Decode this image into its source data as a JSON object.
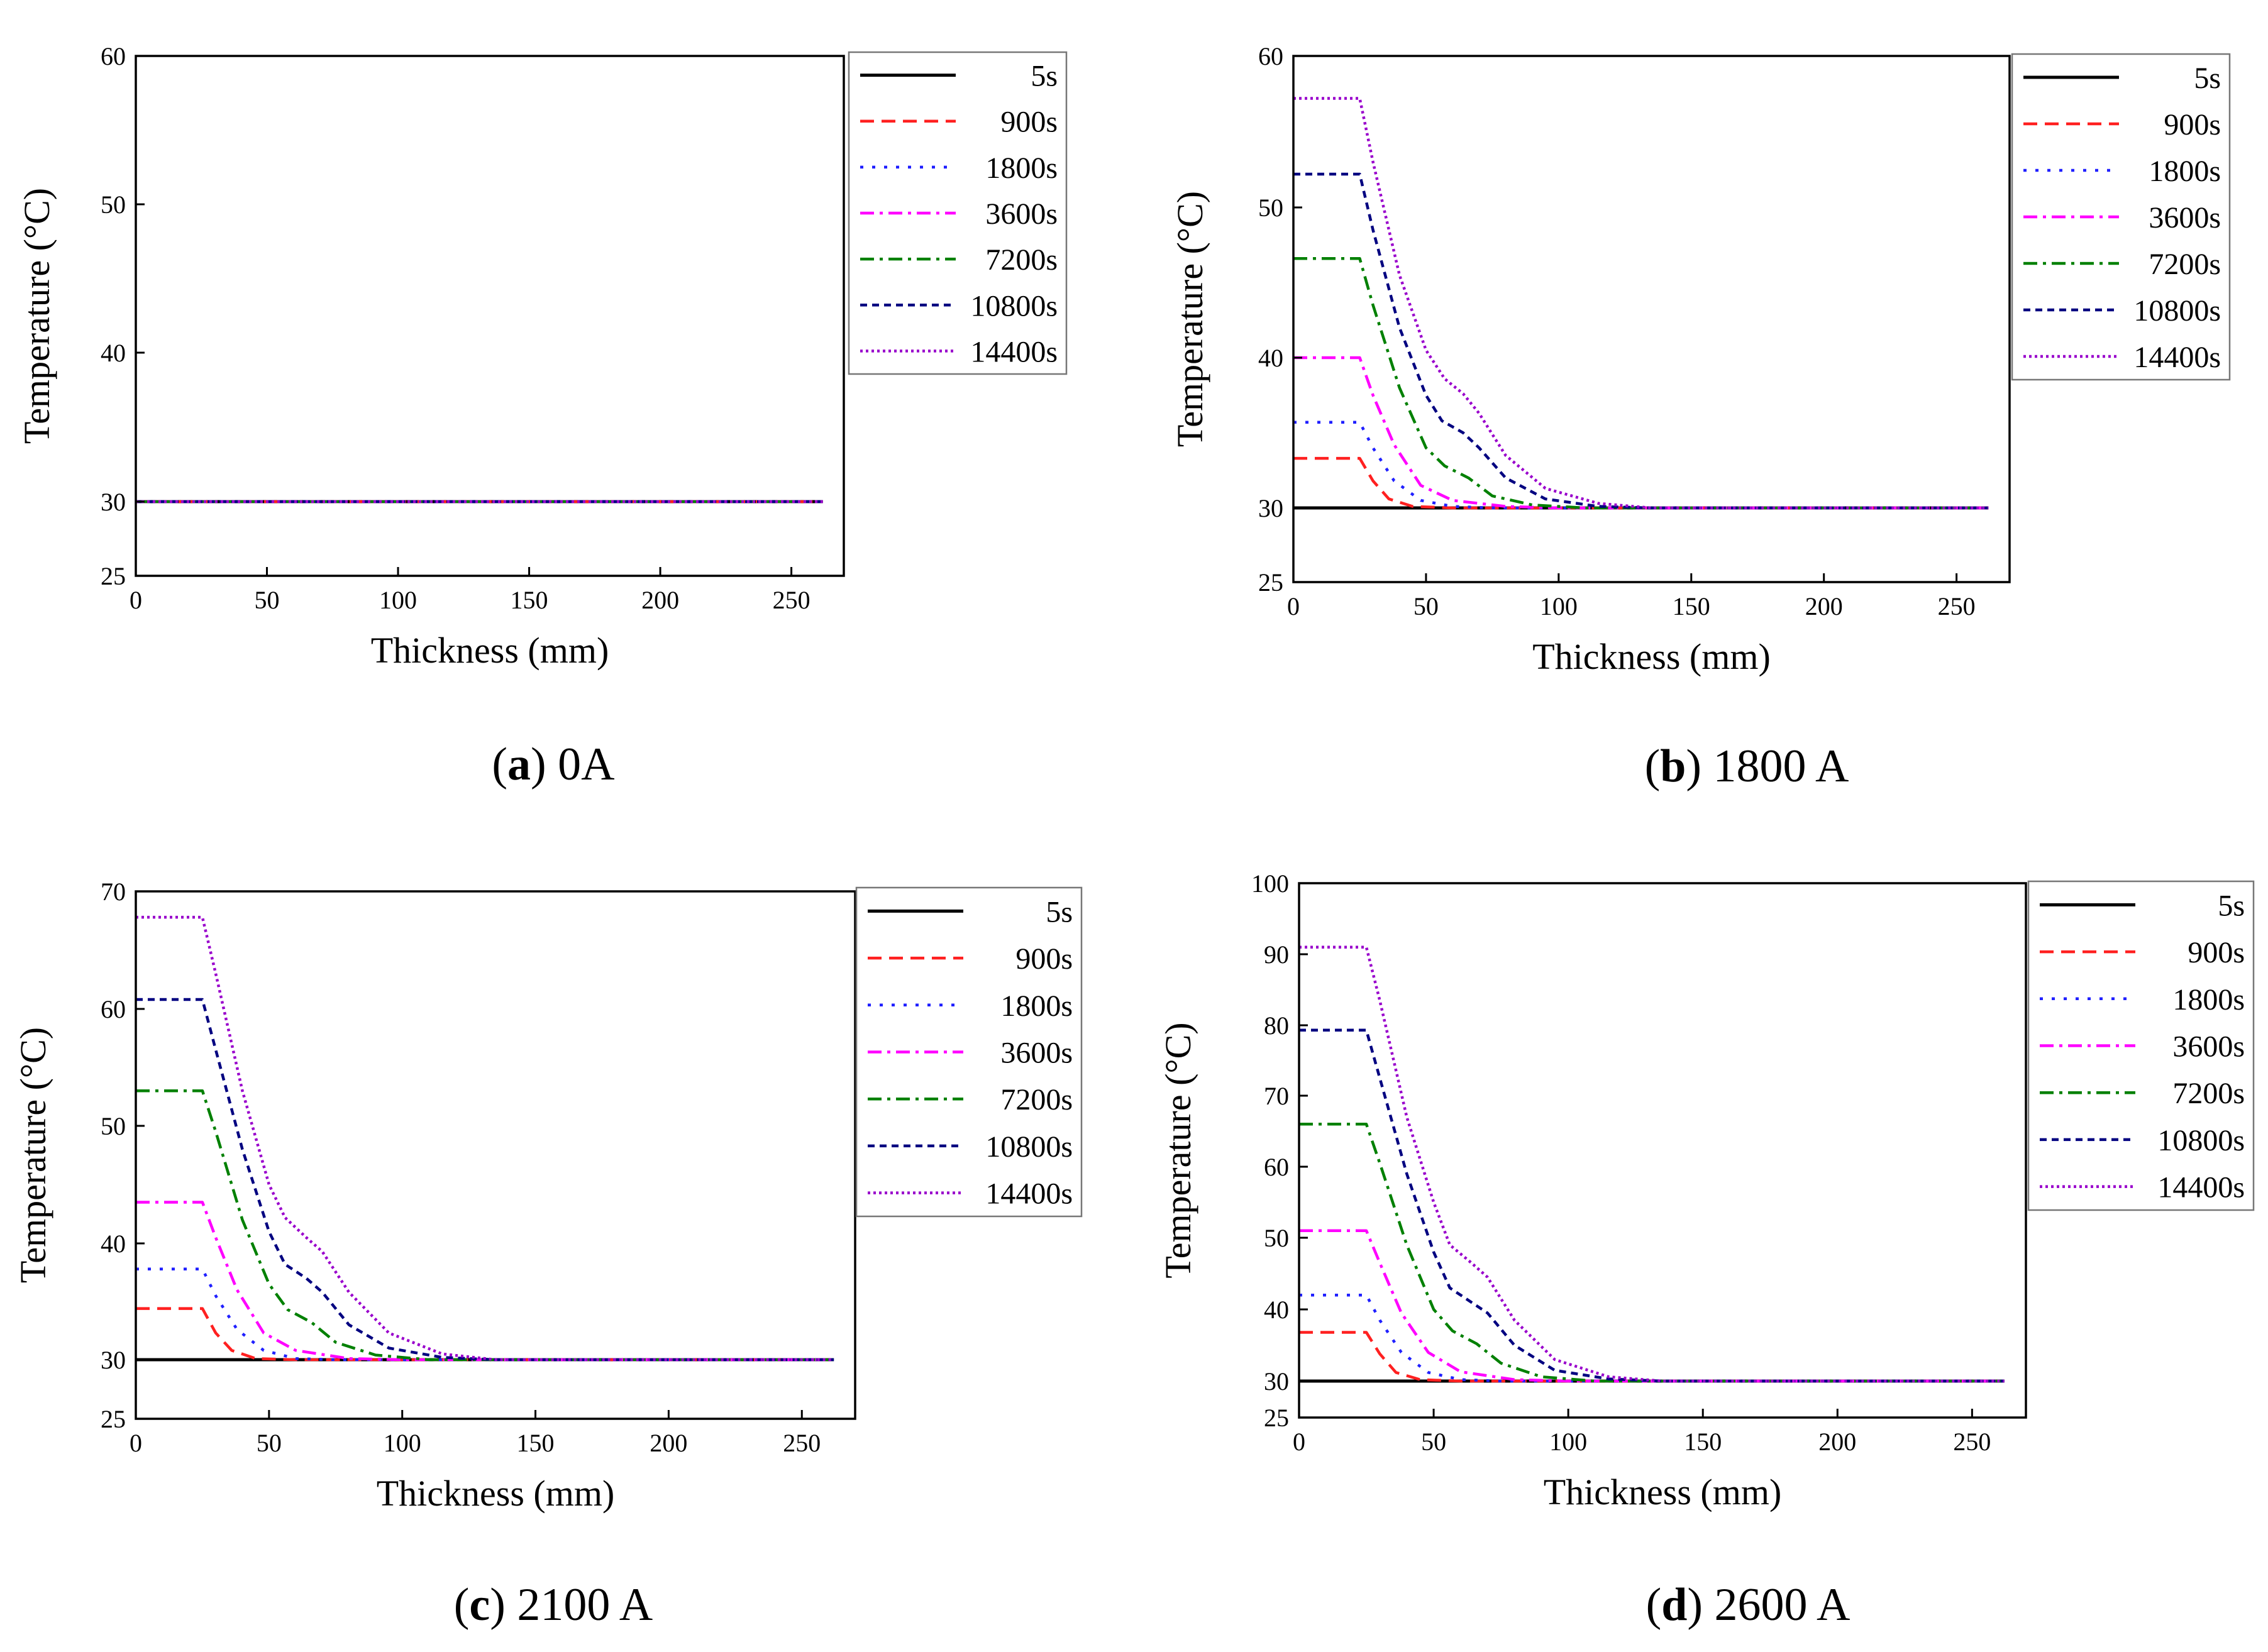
{
  "chart_data": [
    {
      "type": "line",
      "caption_letter": "a",
      "caption_text": "0A",
      "xlabel": "Thickness (mm)",
      "ylabel": "Temperature (°C)",
      "xlim": [
        0,
        270
      ],
      "ylim": [
        25,
        60
      ],
      "xticks": [
        0,
        50,
        100,
        150,
        200,
        250
      ],
      "yticks": [
        25,
        30,
        40,
        50,
        60
      ],
      "legend_position": "outside-top-right",
      "series": [
        {
          "name": "5s",
          "color": "#000000",
          "dash": "solid",
          "points": [
            [
              0,
              30
            ],
            [
              262,
              30
            ]
          ]
        },
        {
          "name": "900s",
          "color": "#ff2020",
          "dash": "dash",
          "points": [
            [
              0,
              30
            ],
            [
              262,
              30
            ]
          ]
        },
        {
          "name": "1800s",
          "color": "#2020ff",
          "dash": "dot",
          "points": [
            [
              0,
              30
            ],
            [
              262,
              30
            ]
          ]
        },
        {
          "name": "3600s",
          "color": "#ff00ff",
          "dash": "dashdot",
          "points": [
            [
              0,
              30
            ],
            [
              262,
              30
            ]
          ]
        },
        {
          "name": "7200s",
          "color": "#008000",
          "dash": "dashdot",
          "points": [
            [
              0,
              30
            ],
            [
              262,
              30
            ]
          ]
        },
        {
          "name": "10800s",
          "color": "#000080",
          "dash": "shortdash",
          "points": [
            [
              0,
              30
            ],
            [
              262,
              30
            ]
          ]
        },
        {
          "name": "14400s",
          "color": "#9900cc",
          "dash": "shortdot",
          "points": [
            [
              0,
              30
            ],
            [
              262,
              30
            ]
          ]
        }
      ]
    },
    {
      "type": "line",
      "caption_letter": "b",
      "caption_text": "1800 A",
      "xlabel": "Thickness (mm)",
      "ylabel": "Temperature (°C)",
      "xlim": [
        0,
        270
      ],
      "ylim": [
        25,
        60
      ],
      "xticks": [
        0,
        50,
        100,
        150,
        200,
        250
      ],
      "yticks": [
        25,
        30,
        40,
        50,
        60
      ],
      "legend_position": "outside-top-right",
      "series": [
        {
          "name": "5s",
          "color": "#000000",
          "dash": "solid",
          "points": [
            [
              0,
              30
            ],
            [
              262,
              30
            ]
          ]
        },
        {
          "name": "900s",
          "color": "#ff2020",
          "dash": "dash",
          "points": [
            [
              0,
              33.3
            ],
            [
              25,
              33.3
            ],
            [
              30,
              31.8
            ],
            [
              36,
              30.6
            ],
            [
              45,
              30.1
            ],
            [
              60,
              30
            ],
            [
              262,
              30
            ]
          ]
        },
        {
          "name": "1800s",
          "color": "#2020ff",
          "dash": "dot",
          "points": [
            [
              0,
              35.7
            ],
            [
              25,
              35.7
            ],
            [
              30,
              34
            ],
            [
              38,
              31.8
            ],
            [
              48,
              30.5
            ],
            [
              60,
              30.1
            ],
            [
              75,
              30
            ],
            [
              262,
              30
            ]
          ]
        },
        {
          "name": "3600s",
          "color": "#ff00ff",
          "dash": "dashdot",
          "points": [
            [
              0,
              40
            ],
            [
              25,
              40
            ],
            [
              30,
              37.5
            ],
            [
              38,
              34.2
            ],
            [
              48,
              31.5
            ],
            [
              60,
              30.5
            ],
            [
              80,
              30.1
            ],
            [
              100,
              30
            ],
            [
              262,
              30
            ]
          ]
        },
        {
          "name": "7200s",
          "color": "#008000",
          "dash": "dashdot",
          "points": [
            [
              0,
              46.6
            ],
            [
              25,
              46.6
            ],
            [
              30,
              43.5
            ],
            [
              40,
              38
            ],
            [
              50,
              34
            ],
            [
              57,
              32.8
            ],
            [
              66,
              32
            ],
            [
              75,
              30.8
            ],
            [
              90,
              30.2
            ],
            [
              110,
              30
            ],
            [
              262,
              30
            ]
          ]
        },
        {
          "name": "10800s",
          "color": "#000080",
          "dash": "shortdash",
          "points": [
            [
              0,
              52.2
            ],
            [
              25,
              52.2
            ],
            [
              30,
              48.5
            ],
            [
              40,
              42
            ],
            [
              50,
              37.5
            ],
            [
              56,
              35.8
            ],
            [
              64,
              35
            ],
            [
              70,
              34
            ],
            [
              80,
              32
            ],
            [
              95,
              30.6
            ],
            [
              115,
              30.1
            ],
            [
              135,
              30
            ],
            [
              262,
              30
            ]
          ]
        },
        {
          "name": "14400s",
          "color": "#9900cc",
          "dash": "shortdot",
          "points": [
            [
              0,
              57.2
            ],
            [
              25,
              57.2
            ],
            [
              30,
              53
            ],
            [
              40,
              45.5
            ],
            [
              50,
              40.5
            ],
            [
              57,
              38.6
            ],
            [
              64,
              37.6
            ],
            [
              70,
              36.3
            ],
            [
              80,
              33.5
            ],
            [
              95,
              31.3
            ],
            [
              115,
              30.3
            ],
            [
              135,
              30
            ],
            [
              262,
              30
            ]
          ]
        }
      ]
    },
    {
      "type": "line",
      "caption_letter": "c",
      "caption_text": "2100 A",
      "xlabel": "Thickness (mm)",
      "ylabel": "Temperature (°C)",
      "xlim": [
        0,
        270
      ],
      "ylim": [
        25,
        70
      ],
      "xticks": [
        0,
        50,
        100,
        150,
        200,
        250
      ],
      "yticks": [
        25,
        30,
        40,
        50,
        60,
        70
      ],
      "legend_position": "outside-top-right",
      "series": [
        {
          "name": "5s",
          "color": "#000000",
          "dash": "solid",
          "points": [
            [
              0,
              30
            ],
            [
              262,
              30
            ]
          ]
        },
        {
          "name": "900s",
          "color": "#ff2020",
          "dash": "dash",
          "points": [
            [
              0,
              34.4
            ],
            [
              25,
              34.4
            ],
            [
              30,
              32.3
            ],
            [
              36,
              30.8
            ],
            [
              45,
              30.1
            ],
            [
              60,
              30
            ],
            [
              262,
              30
            ]
          ]
        },
        {
          "name": "1800s",
          "color": "#2020ff",
          "dash": "dot",
          "points": [
            [
              0,
              37.8
            ],
            [
              25,
              37.8
            ],
            [
              30,
              35.5
            ],
            [
              38,
              32.6
            ],
            [
              48,
              30.8
            ],
            [
              60,
              30.1
            ],
            [
              75,
              30
            ],
            [
              262,
              30
            ]
          ]
        },
        {
          "name": "3600s",
          "color": "#ff00ff",
          "dash": "dashdot",
          "points": [
            [
              0,
              43.5
            ],
            [
              25,
              43.5
            ],
            [
              30,
              40.5
            ],
            [
              38,
              36
            ],
            [
              48,
              32.3
            ],
            [
              60,
              30.8
            ],
            [
              80,
              30.1
            ],
            [
              100,
              30
            ],
            [
              262,
              30
            ]
          ]
        },
        {
          "name": "7200s",
          "color": "#008000",
          "dash": "dashdot",
          "points": [
            [
              0,
              53
            ],
            [
              25,
              53
            ],
            [
              30,
              49.5
            ],
            [
              40,
              42
            ],
            [
              50,
              36.5
            ],
            [
              57,
              34.3
            ],
            [
              66,
              33.2
            ],
            [
              75,
              31.5
            ],
            [
              90,
              30.4
            ],
            [
              110,
              30
            ],
            [
              262,
              30
            ]
          ]
        },
        {
          "name": "10800s",
          "color": "#000080",
          "dash": "shortdash",
          "points": [
            [
              0,
              60.8
            ],
            [
              25,
              60.8
            ],
            [
              30,
              56.5
            ],
            [
              40,
              48
            ],
            [
              50,
              41
            ],
            [
              56,
              38.2
            ],
            [
              64,
              37
            ],
            [
              70,
              35.8
            ],
            [
              80,
              33
            ],
            [
              95,
              31
            ],
            [
              115,
              30.2
            ],
            [
              135,
              30
            ],
            [
              262,
              30
            ]
          ]
        },
        {
          "name": "14400s",
          "color": "#9900cc",
          "dash": "shortdot",
          "points": [
            [
              0,
              67.8
            ],
            [
              25,
              67.8
            ],
            [
              30,
              63
            ],
            [
              40,
              53
            ],
            [
              50,
              45
            ],
            [
              56,
              42.2
            ],
            [
              64,
              40.5
            ],
            [
              70,
              39.3
            ],
            [
              80,
              35.8
            ],
            [
              95,
              32.3
            ],
            [
              115,
              30.5
            ],
            [
              135,
              30
            ],
            [
              262,
              30
            ]
          ]
        }
      ]
    },
    {
      "type": "line",
      "caption_letter": "d",
      "caption_text": "2600 A",
      "xlabel": "Thickness (mm)",
      "ylabel": "Temperature (°C)",
      "xlim": [
        0,
        270
      ],
      "ylim": [
        25,
        100
      ],
      "xticks": [
        0,
        50,
        100,
        150,
        200,
        250
      ],
      "yticks": [
        25,
        30,
        40,
        50,
        60,
        70,
        80,
        90,
        100
      ],
      "legend_position": "outside-top-right",
      "series": [
        {
          "name": "5s",
          "color": "#000000",
          "dash": "solid",
          "points": [
            [
              0,
              30
            ],
            [
              262,
              30
            ]
          ]
        },
        {
          "name": "900s",
          "color": "#ff2020",
          "dash": "dash",
          "points": [
            [
              0,
              36.8
            ],
            [
              25,
              36.8
            ],
            [
              30,
              33.8
            ],
            [
              36,
              31.2
            ],
            [
              45,
              30.2
            ],
            [
              60,
              30
            ],
            [
              262,
              30
            ]
          ]
        },
        {
          "name": "1800s",
          "color": "#2020ff",
          "dash": "dot",
          "points": [
            [
              0,
              42
            ],
            [
              25,
              42
            ],
            [
              30,
              38.5
            ],
            [
              38,
              34
            ],
            [
              48,
              31.2
            ],
            [
              60,
              30.2
            ],
            [
              75,
              30
            ],
            [
              262,
              30
            ]
          ]
        },
        {
          "name": "3600s",
          "color": "#ff00ff",
          "dash": "dashdot",
          "points": [
            [
              0,
              51
            ],
            [
              25,
              51
            ],
            [
              30,
              46.5
            ],
            [
              38,
              39.5
            ],
            [
              48,
              34
            ],
            [
              60,
              31.3
            ],
            [
              80,
              30.2
            ],
            [
              100,
              30
            ],
            [
              262,
              30
            ]
          ]
        },
        {
          "name": "7200s",
          "color": "#008000",
          "dash": "dashdot",
          "points": [
            [
              0,
              66
            ],
            [
              25,
              66
            ],
            [
              30,
              60.5
            ],
            [
              40,
              49
            ],
            [
              50,
              40
            ],
            [
              57,
              37
            ],
            [
              66,
              35.2
            ],
            [
              75,
              32.5
            ],
            [
              90,
              30.6
            ],
            [
              110,
              30
            ],
            [
              262,
              30
            ]
          ]
        },
        {
          "name": "10800s",
          "color": "#000080",
          "dash": "shortdash",
          "points": [
            [
              0,
              79.3
            ],
            [
              25,
              79.3
            ],
            [
              30,
              72.5
            ],
            [
              40,
              59
            ],
            [
              50,
              48
            ],
            [
              56,
              43
            ],
            [
              64,
              41
            ],
            [
              70,
              39.5
            ],
            [
              80,
              35
            ],
            [
              95,
              31.5
            ],
            [
              115,
              30.3
            ],
            [
              135,
              30
            ],
            [
              262,
              30
            ]
          ]
        },
        {
          "name": "14400s",
          "color": "#9900cc",
          "dash": "shortdot",
          "points": [
            [
              0,
              91
            ],
            [
              25,
              91
            ],
            [
              30,
              83.5
            ],
            [
              40,
              67
            ],
            [
              50,
              55
            ],
            [
              56,
              49
            ],
            [
              64,
              46.5
            ],
            [
              70,
              44.5
            ],
            [
              80,
              38.5
            ],
            [
              95,
              33
            ],
            [
              115,
              30.6
            ],
            [
              135,
              30
            ],
            [
              262,
              30
            ]
          ]
        }
      ]
    }
  ]
}
